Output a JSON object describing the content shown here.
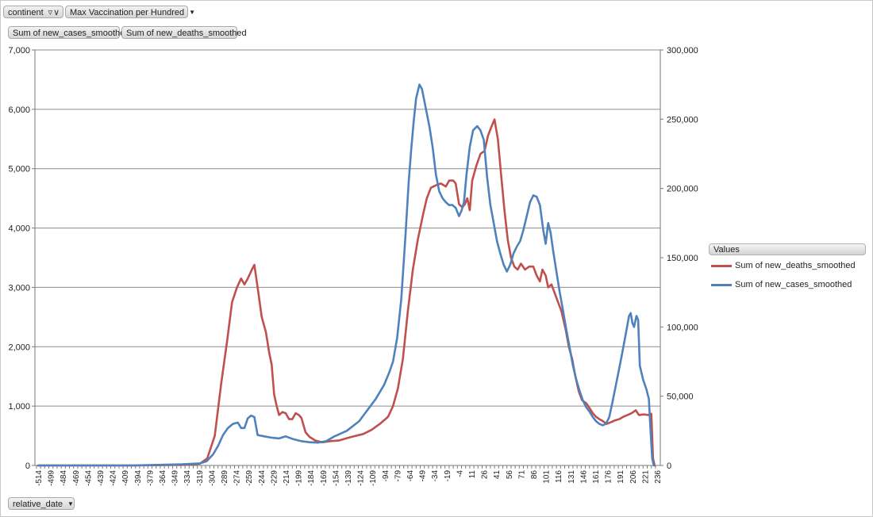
{
  "header": {
    "filter_field": "continent",
    "filter_icon": "filter-icon",
    "value_field": "Max Vaccination per Hundred",
    "series_buttons": [
      "Sum of new_cases_smoothed",
      "Sum of new_deaths_smoothed"
    ],
    "axis_field": "relative_date"
  },
  "legend": {
    "title": "Values",
    "items": [
      {
        "label": "Sum of new_deaths_smoothed",
        "color": "#c0504d"
      },
      {
        "label": "Sum of new_cases_smoothed",
        "color": "#4f81bd"
      }
    ]
  },
  "chart_data": {
    "type": "line",
    "title": "",
    "xlabel": "relative_date",
    "grid": true,
    "x_tick_labels": [
      "-514",
      "-499",
      "-484",
      "-469",
      "-454",
      "-439",
      "-424",
      "-409",
      "-394",
      "-379",
      "-364",
      "-349",
      "-334",
      "-319",
      "-304",
      "-289",
      "-274",
      "-259",
      "-244",
      "-229",
      "-214",
      "-199",
      "-184",
      "-169",
      "-154",
      "-139",
      "-124",
      "-109",
      "-94",
      "-79",
      "-64",
      "-49",
      "-34",
      "-19",
      "-4",
      "11",
      "26",
      "41",
      "56",
      "71",
      "86",
      "101",
      "116",
      "131",
      "146",
      "161",
      "176",
      "191",
      "206",
      "221",
      "236"
    ],
    "y_left": {
      "ylim": [
        0,
        7000
      ],
      "ticks": [
        "0",
        "1,000",
        "2,000",
        "3,000",
        "4,000",
        "5,000",
        "6,000",
        "7,000"
      ],
      "series": "Sum of new_deaths_smoothed"
    },
    "y_right": {
      "ylim": [
        0,
        300000
      ],
      "ticks": [
        "0",
        "50,000",
        "100,000",
        "150,000",
        "200,000",
        "250,000",
        "300,000"
      ],
      "series": "Sum of new_cases_smoothed"
    },
    "series": [
      {
        "name": "Sum of new_deaths_smoothed",
        "axis": "left",
        "color": "#c0504d",
        "points": [
          [
            -514,
            0
          ],
          [
            -400,
            0
          ],
          [
            -340,
            10
          ],
          [
            -318,
            30
          ],
          [
            -309,
            120
          ],
          [
            -300,
            500
          ],
          [
            -292,
            1400
          ],
          [
            -285,
            2100
          ],
          [
            -279,
            2750
          ],
          [
            -273,
            3000
          ],
          [
            -268,
            3150
          ],
          [
            -264,
            3050
          ],
          [
            -260,
            3150
          ],
          [
            -255,
            3300
          ],
          [
            -252,
            3380
          ],
          [
            -248,
            3000
          ],
          [
            -243,
            2500
          ],
          [
            -238,
            2250
          ],
          [
            -234,
            1900
          ],
          [
            -231,
            1700
          ],
          [
            -228,
            1200
          ],
          [
            -225,
            1000
          ],
          [
            -222,
            850
          ],
          [
            -218,
            900
          ],
          [
            -214,
            880
          ],
          [
            -210,
            780
          ],
          [
            -206,
            780
          ],
          [
            -202,
            880
          ],
          [
            -198,
            850
          ],
          [
            -195,
            800
          ],
          [
            -190,
            560
          ],
          [
            -185,
            480
          ],
          [
            -178,
            420
          ],
          [
            -170,
            390
          ],
          [
            -160,
            410
          ],
          [
            -150,
            420
          ],
          [
            -135,
            480
          ],
          [
            -120,
            530
          ],
          [
            -110,
            600
          ],
          [
            -100,
            700
          ],
          [
            -90,
            820
          ],
          [
            -84,
            1000
          ],
          [
            -78,
            1300
          ],
          [
            -72,
            1800
          ],
          [
            -66,
            2600
          ],
          [
            -60,
            3300
          ],
          [
            -54,
            3800
          ],
          [
            -48,
            4200
          ],
          [
            -43,
            4500
          ],
          [
            -38,
            4680
          ],
          [
            -32,
            4720
          ],
          [
            -26,
            4750
          ],
          [
            -20,
            4700
          ],
          [
            -16,
            4800
          ],
          [
            -11,
            4800
          ],
          [
            -8,
            4750
          ],
          [
            -4,
            4400
          ],
          [
            0,
            4350
          ],
          [
            3,
            4400
          ],
          [
            6,
            4500
          ],
          [
            9,
            4300
          ],
          [
            12,
            4800
          ],
          [
            17,
            5050
          ],
          [
            22,
            5250
          ],
          [
            27,
            5300
          ],
          [
            31,
            5550
          ],
          [
            35,
            5700
          ],
          [
            39,
            5830
          ],
          [
            43,
            5500
          ],
          [
            47,
            4900
          ],
          [
            51,
            4300
          ],
          [
            55,
            3800
          ],
          [
            59,
            3500
          ],
          [
            63,
            3350
          ],
          [
            67,
            3300
          ],
          [
            71,
            3400
          ],
          [
            76,
            3300
          ],
          [
            81,
            3350
          ],
          [
            86,
            3350
          ],
          [
            90,
            3200
          ],
          [
            94,
            3100
          ],
          [
            97,
            3300
          ],
          [
            101,
            3200
          ],
          [
            104,
            3000
          ],
          [
            108,
            3050
          ],
          [
            112,
            2900
          ],
          [
            116,
            2750
          ],
          [
            120,
            2600
          ],
          [
            125,
            2300
          ],
          [
            129,
            2000
          ],
          [
            133,
            1800
          ],
          [
            137,
            1500
          ],
          [
            141,
            1250
          ],
          [
            145,
            1100
          ],
          [
            150,
            1050
          ],
          [
            154,
            970
          ],
          [
            158,
            880
          ],
          [
            162,
            820
          ],
          [
            166,
            780
          ],
          [
            170,
            750
          ],
          [
            175,
            700
          ],
          [
            180,
            730
          ],
          [
            185,
            760
          ],
          [
            190,
            780
          ],
          [
            195,
            820
          ],
          [
            200,
            850
          ],
          [
            205,
            880
          ],
          [
            210,
            930
          ],
          [
            214,
            850
          ],
          [
            220,
            860
          ],
          [
            225,
            850
          ],
          [
            229,
            870
          ],
          [
            231,
            120
          ],
          [
            233,
            0
          ]
        ]
      },
      {
        "name": "Sum of new_cases_smoothed",
        "axis": "right",
        "color": "#4f81bd",
        "points": [
          [
            -514,
            0
          ],
          [
            -400,
            0
          ],
          [
            -340,
            800
          ],
          [
            -318,
            1500
          ],
          [
            -310,
            3000
          ],
          [
            -302,
            8000
          ],
          [
            -296,
            14000
          ],
          [
            -290,
            22000
          ],
          [
            -284,
            27000
          ],
          [
            -278,
            30000
          ],
          [
            -272,
            31000
          ],
          [
            -268,
            27000
          ],
          [
            -264,
            27000
          ],
          [
            -260,
            34000
          ],
          [
            -256,
            36000
          ],
          [
            -252,
            35000
          ],
          [
            -248,
            22000
          ],
          [
            -240,
            21000
          ],
          [
            -230,
            20000
          ],
          [
            -222,
            19500
          ],
          [
            -214,
            21000
          ],
          [
            -205,
            19000
          ],
          [
            -195,
            17500
          ],
          [
            -185,
            16800
          ],
          [
            -175,
            16500
          ],
          [
            -165,
            17500
          ],
          [
            -155,
            21000
          ],
          [
            -140,
            25000
          ],
          [
            -125,
            32000
          ],
          [
            -115,
            40000
          ],
          [
            -105,
            48000
          ],
          [
            -95,
            58000
          ],
          [
            -88,
            68000
          ],
          [
            -84,
            75000
          ],
          [
            -79,
            92000
          ],
          [
            -74,
            120000
          ],
          [
            -69,
            165000
          ],
          [
            -65,
            205000
          ],
          [
            -62,
            228000
          ],
          [
            -59,
            248000
          ],
          [
            -56,
            265000
          ],
          [
            -52,
            275000
          ],
          [
            -49,
            272000
          ],
          [
            -45,
            260000
          ],
          [
            -40,
            245000
          ],
          [
            -36,
            230000
          ],
          [
            -32,
            210000
          ],
          [
            -28,
            198000
          ],
          [
            -24,
            193000
          ],
          [
            -20,
            190000
          ],
          [
            -16,
            188000
          ],
          [
            -12,
            188000
          ],
          [
            -8,
            186000
          ],
          [
            -4,
            180000
          ],
          [
            -1,
            184000
          ],
          [
            2,
            190000
          ],
          [
            5,
            210000
          ],
          [
            9,
            230000
          ],
          [
            13,
            242000
          ],
          [
            18,
            245000
          ],
          [
            22,
            242000
          ],
          [
            26,
            235000
          ],
          [
            30,
            208000
          ],
          [
            34,
            188000
          ],
          [
            38,
            175000
          ],
          [
            42,
            162000
          ],
          [
            46,
            153000
          ],
          [
            50,
            145000
          ],
          [
            54,
            140000
          ],
          [
            58,
            145000
          ],
          [
            62,
            153000
          ],
          [
            66,
            158000
          ],
          [
            70,
            162000
          ],
          [
            74,
            170000
          ],
          [
            78,
            180000
          ],
          [
            82,
            190000
          ],
          [
            86,
            195000
          ],
          [
            90,
            194000
          ],
          [
            94,
            188000
          ],
          [
            98,
            170000
          ],
          [
            101,
            160000
          ],
          [
            104,
            175000
          ],
          [
            107,
            168000
          ],
          [
            110,
            155000
          ],
          [
            114,
            140000
          ],
          [
            118,
            125000
          ],
          [
            122,
            112000
          ],
          [
            126,
            98000
          ],
          [
            130,
            85000
          ],
          [
            134,
            72000
          ],
          [
            138,
            62000
          ],
          [
            142,
            54000
          ],
          [
            146,
            47000
          ],
          [
            150,
            42000
          ],
          [
            154,
            39000
          ],
          [
            158,
            35000
          ],
          [
            162,
            32000
          ],
          [
            166,
            30000
          ],
          [
            170,
            29000
          ],
          [
            174,
            30000
          ],
          [
            178,
            35000
          ],
          [
            182,
            46000
          ],
          [
            186,
            58000
          ],
          [
            190,
            70000
          ],
          [
            194,
            82000
          ],
          [
            198,
            95000
          ],
          [
            202,
            108000
          ],
          [
            204,
            110000
          ],
          [
            206,
            103000
          ],
          [
            208,
            100000
          ],
          [
            211,
            108000
          ],
          [
            213,
            105000
          ],
          [
            215,
            72000
          ],
          [
            219,
            62000
          ],
          [
            223,
            55000
          ],
          [
            226,
            48000
          ],
          [
            228,
            25000
          ],
          [
            230,
            5000
          ],
          [
            232,
            0
          ]
        ]
      }
    ]
  }
}
